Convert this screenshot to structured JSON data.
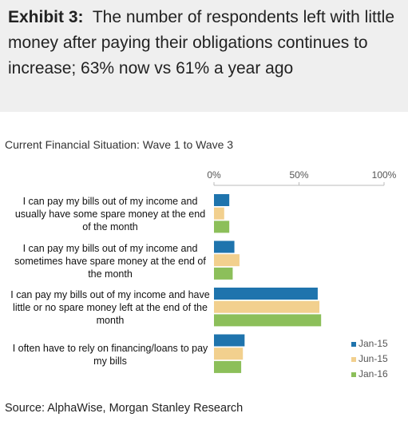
{
  "header": {
    "label": "Exhibit 3:",
    "title": "The number of respondents left with little money after paying their obligations continues to increase; 63% now vs 61% a year ago"
  },
  "chart_data": {
    "type": "hbar",
    "title": "Current Financial Situation: Wave 1 to Wave 3",
    "categories": [
      "I can pay my bills out of my income and usually have some spare money at the end of the month",
      "I can pay my bills out of my income and sometimes have spare money at the end of the month",
      "I can pay my bills out of my income and have little or no spare money left at the end of the month",
      "I often have to rely on financing/loans to pay my bills"
    ],
    "series": [
      {
        "name": "Jan-15",
        "color": "#1f74ad",
        "values": [
          9,
          12,
          61,
          18
        ]
      },
      {
        "name": "Jun-15",
        "color": "#f2d08e",
        "values": [
          6,
          15,
          62,
          17
        ]
      },
      {
        "name": "Jan-16",
        "color": "#8cbf5a",
        "values": [
          9,
          11,
          63,
          16
        ]
      }
    ],
    "xlim": [
      0,
      100
    ],
    "xticks": [
      {
        "value": 0,
        "label": "0%"
      },
      {
        "value": 50,
        "label": "50%"
      },
      {
        "value": 100,
        "label": "100%"
      }
    ],
    "legend": "lower-right"
  },
  "source": "Source: AlphaWise, Morgan Stanley Research"
}
